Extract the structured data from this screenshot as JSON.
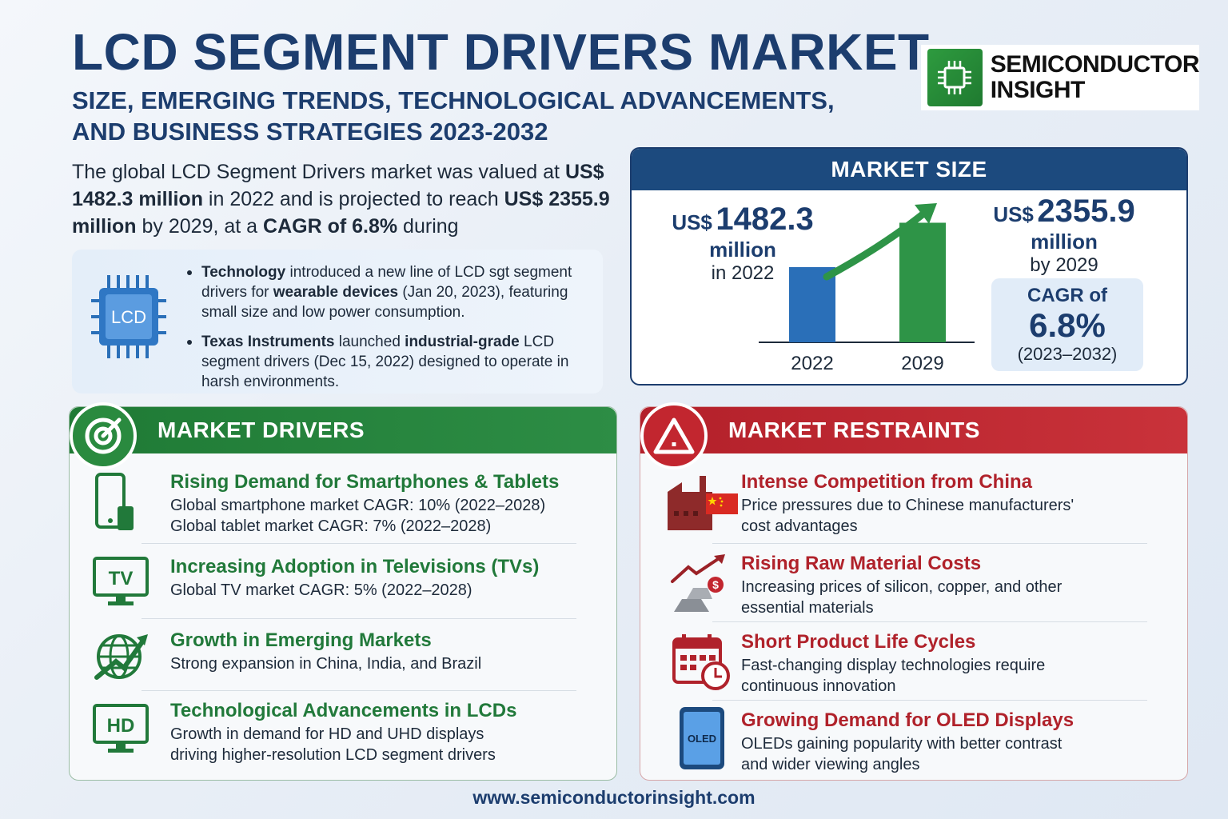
{
  "header": {
    "title": "LCD SEGMENT DRIVERS MARKET",
    "subtitle": "SIZE, EMERGING TRENDS, TECHNOLOGICAL ADVANCEMENTS, AND BUSINESS STRATEGIES 2023-2032"
  },
  "brand": {
    "line1": "SEMICONDUCTOR",
    "line2": "INSIGHT",
    "color": "#2e9b3f"
  },
  "intro": {
    "p1": "The global LCD Segment Drivers market was valued at ",
    "v1": "US$ 1482.3 million",
    "p2": " in 2022 and is projected to reach ",
    "v2": "US$ 2355.9 million",
    "p3": " by 2029, at a ",
    "v3": "CAGR of 6.8%",
    "p4": " during"
  },
  "news": {
    "icon_label": "LCD",
    "items": [
      {
        "b1": "Technology",
        "t1": " introduced a new line of LCD sgt segment drivers for ",
        "b2": "wearable devices",
        "t2": " (Jan 20, 2023), featuring small size and low power consumption."
      },
      {
        "b1": "Texas Instruments",
        "t1": " launched ",
        "b2": "industrial-grade",
        "t2": " LCD segment drivers (Dec 15, 2022) designed to operate in harsh environments."
      }
    ]
  },
  "market_size": {
    "heading": "MARKET SIZE",
    "left": {
      "us": "US$",
      "value": "1482.3",
      "unit": "million",
      "year_text": "in 2022"
    },
    "right": {
      "us": "US$",
      "value": "2355.9",
      "unit": "million",
      "year_text": "by 2029"
    },
    "cagr": {
      "label": "CAGR of",
      "value": "6.8%",
      "period": "(2023–2032)"
    }
  },
  "chart_data": {
    "type": "bar",
    "categories": [
      "2022",
      "2029"
    ],
    "values": [
      1482.3,
      2355.9
    ],
    "title": "",
    "xlabel": "",
    "ylabel": "",
    "ylim": [
      0,
      2600
    ],
    "colors": [
      "#2a6fb8",
      "#2e9447"
    ]
  },
  "drivers": {
    "heading": "MARKET DRIVERS",
    "items": [
      {
        "icon": "smartphone-tablet-icon",
        "title": "Rising Demand for Smartphones & Tablets",
        "lines": [
          "Global smartphone market CAGR: 10% (2022–2028)",
          "Global tablet market CAGR: 7% (2022–2028)"
        ]
      },
      {
        "icon": "tv-icon",
        "icon_text": "TV",
        "title": "Increasing Adoption in Televisions (TVs)",
        "lines": [
          "Global TV market CAGR: 5% (2022–2028)"
        ]
      },
      {
        "icon": "globe-growth-icon",
        "title": "Growth in Emerging Markets",
        "lines": [
          "Strong expansion in China, India, and Brazil"
        ]
      },
      {
        "icon": "hd-monitor-icon",
        "icon_text": "HD",
        "title": "Technological Advancements in LCDs",
        "lines": [
          "Growth in demand for HD and UHD displays",
          "driving higher-resolution LCD segment drivers"
        ]
      }
    ]
  },
  "restraints": {
    "heading": "MARKET RESTRAINTS",
    "items": [
      {
        "icon": "factory-china-icon",
        "title": "Intense Competition from China",
        "lines": [
          "Price pressures due to Chinese manufacturers'",
          "cost advantages"
        ]
      },
      {
        "icon": "raw-material-cost-icon",
        "title": "Rising Raw Material Costs",
        "lines": [
          "Increasing prices of silicon, copper, and other",
          "essential materials"
        ]
      },
      {
        "icon": "calendar-clock-icon",
        "title": "Short Product Life Cycles",
        "lines": [
          "Fast-changing display technologies require",
          "continuous innovation"
        ]
      },
      {
        "icon": "oled-phone-icon",
        "icon_text": "OLED",
        "title": "Growing Demand for OLED Displays",
        "lines": [
          "OLEDs gaining popularity with better contrast",
          "and wider viewing angles"
        ]
      }
    ]
  },
  "footer": {
    "url": "www.semiconductorinsight.com"
  }
}
